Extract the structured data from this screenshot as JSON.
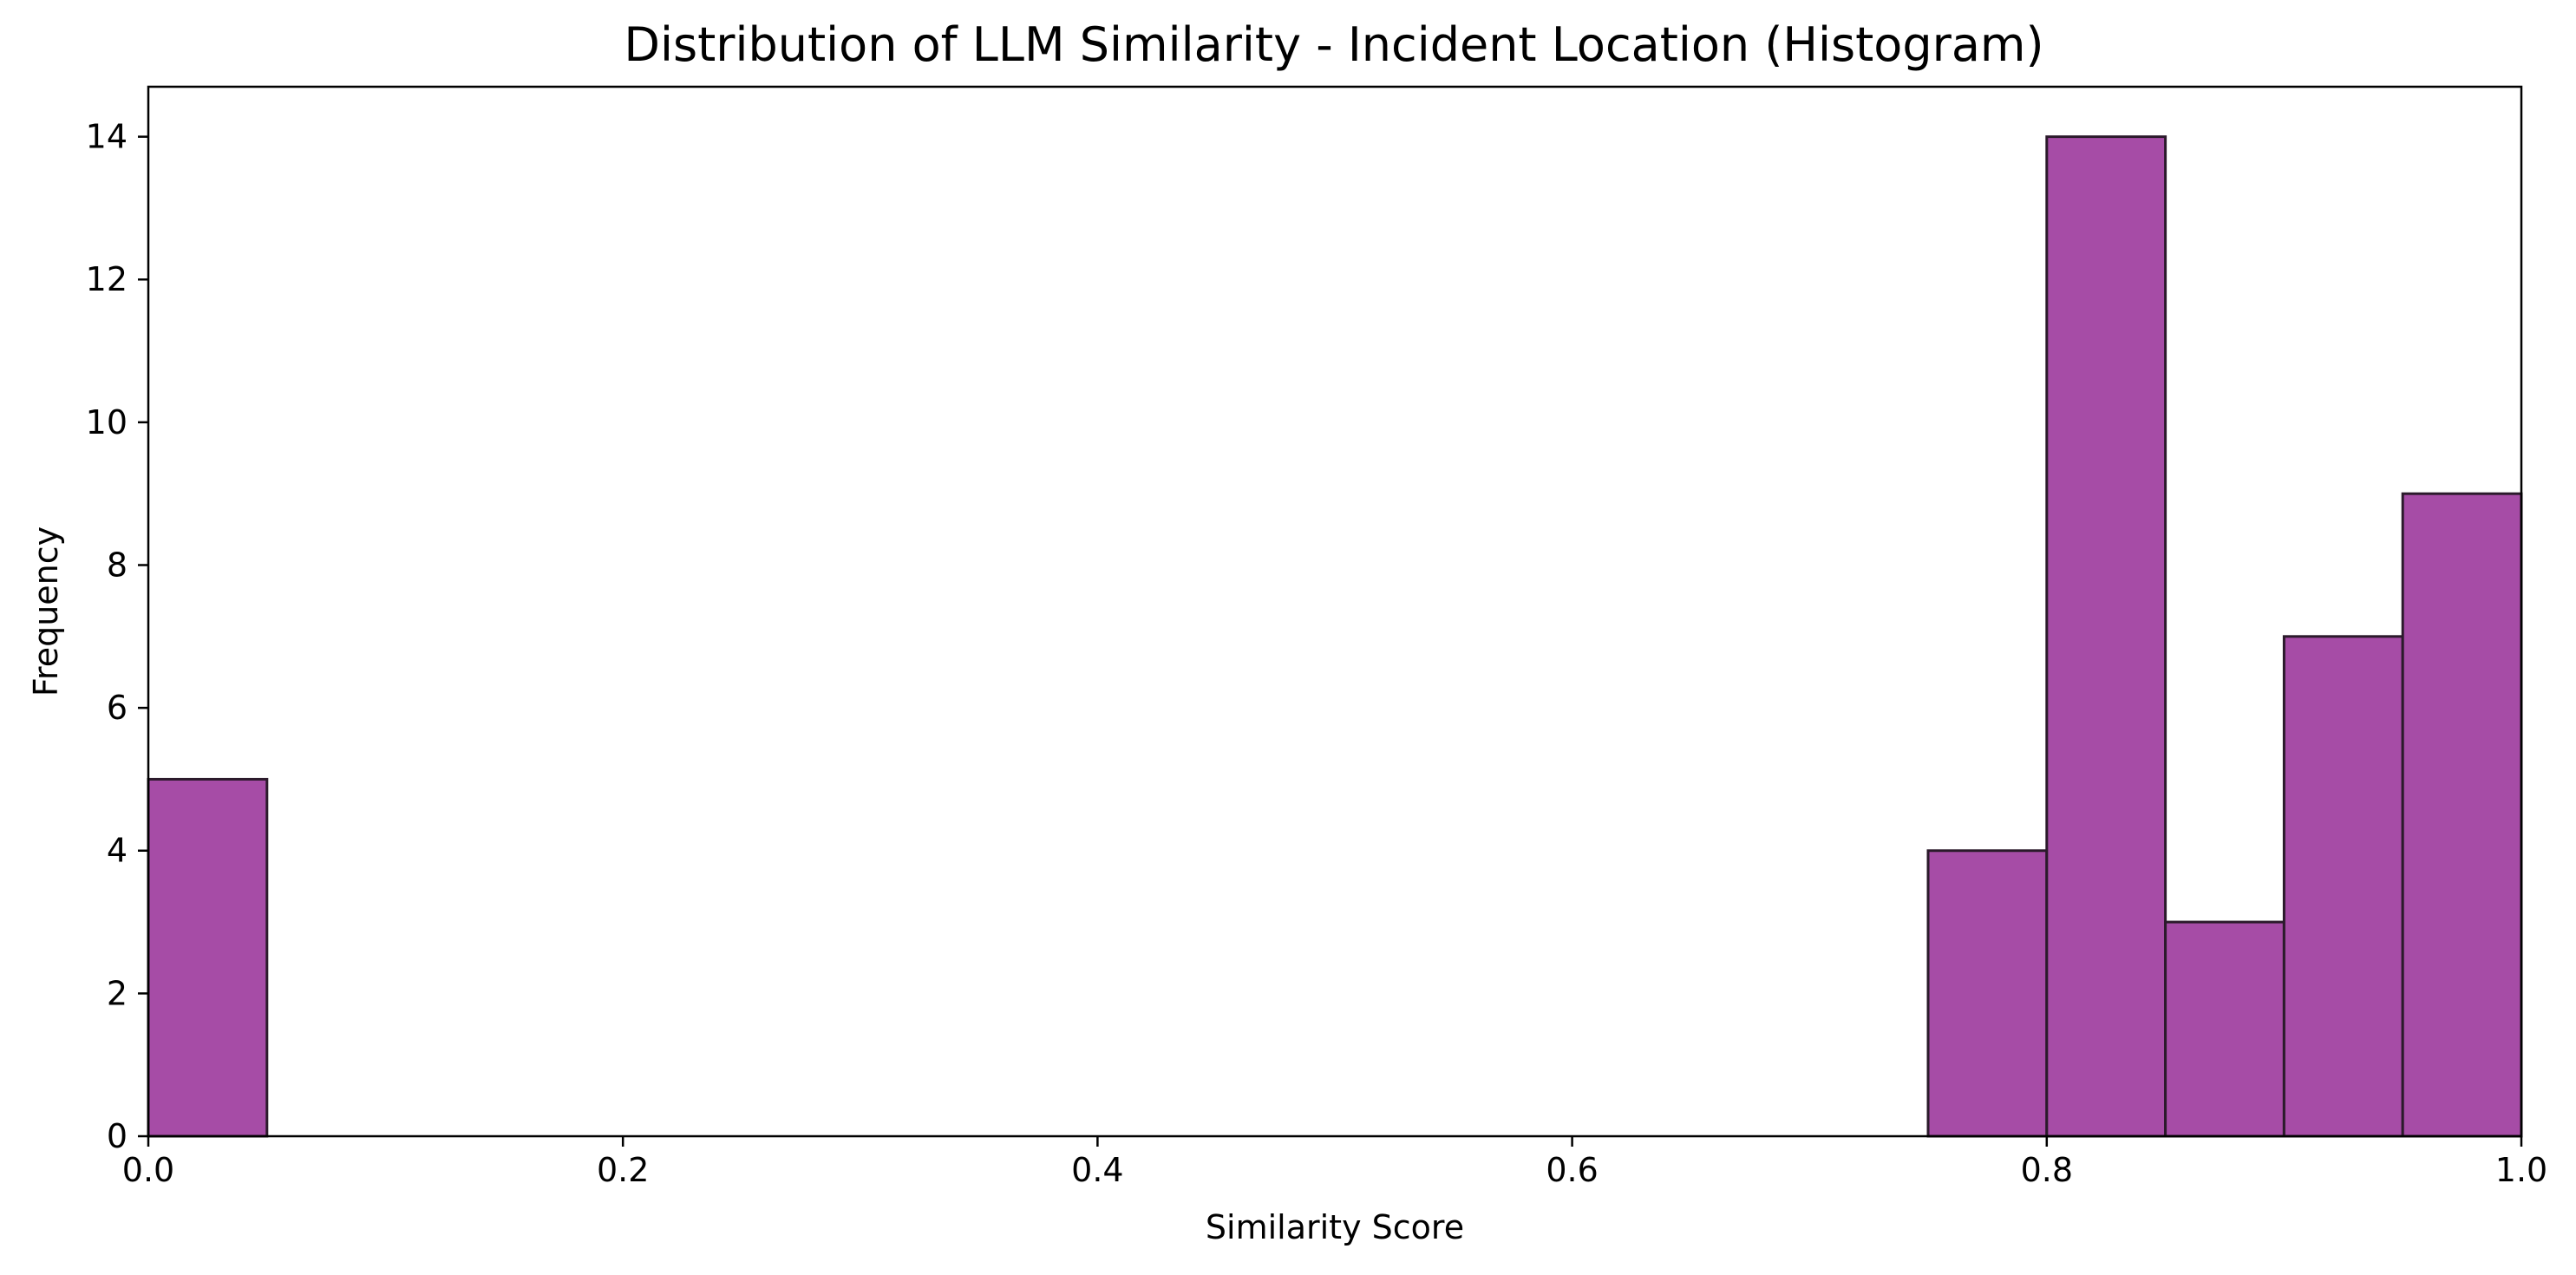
{
  "chart_data": {
    "type": "bar",
    "title": "Distribution of LLM Similarity - Incident Location (Histogram)",
    "xlabel": "Similarity Score",
    "ylabel": "Frequency",
    "xlim": [
      0.0,
      1.0
    ],
    "ylim": [
      0,
      14.7
    ],
    "x_ticks": [
      "0.0",
      "0.2",
      "0.4",
      "0.6",
      "0.8",
      "1.0"
    ],
    "y_ticks": [
      "0",
      "2",
      "4",
      "6",
      "8",
      "10",
      "12",
      "14"
    ],
    "bin_width": 0.05,
    "bins": [
      {
        "x0": 0.0,
        "x1": 0.05,
        "value": 5
      },
      {
        "x0": 0.75,
        "x1": 0.8,
        "value": 4
      },
      {
        "x0": 0.8,
        "x1": 0.85,
        "value": 14
      },
      {
        "x0": 0.85,
        "x1": 0.9,
        "value": 3
      },
      {
        "x0": 0.9,
        "x1": 0.95,
        "value": 7
      },
      {
        "x0": 0.95,
        "x1": 1.0,
        "value": 9
      }
    ],
    "bar_color": "#a64ca6",
    "bar_edge_color": "#2b1a2b",
    "grid": false,
    "legend": "none"
  }
}
